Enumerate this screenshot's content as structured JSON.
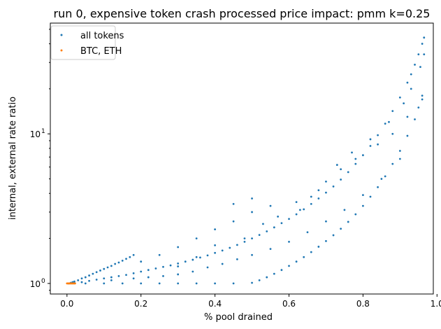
{
  "chart_data": {
    "type": "scatter",
    "title": "run 0, expensive token crash processed price impact: pmm k=0.25",
    "xlabel": "% pool drained",
    "ylabel": "internal, external rate ratio",
    "xlim": [
      -0.045,
      0.99
    ],
    "ylim": [
      0.85,
      55
    ],
    "yscale": "log",
    "grid": false,
    "legend_position": "top-left",
    "x_ticks": [
      0.0,
      0.2,
      0.4,
      0.6,
      0.8,
      1.0
    ],
    "x_tick_labels": [
      "0.0",
      "0.2",
      "0.4",
      "0.6",
      "0.8",
      "1.0"
    ],
    "y_major_ticks": [
      1,
      10
    ],
    "y_major_tick_labels": [
      "10",
      "10"
    ],
    "y_major_tick_exponents": [
      "0",
      "1"
    ],
    "series": [
      {
        "name": "all tokens",
        "color": "#1f77b4",
        "points": [
          [
            0.005,
            1.0
          ],
          [
            0.01,
            1.01
          ],
          [
            0.015,
            1.02
          ],
          [
            0.02,
            1.03
          ],
          [
            0.03,
            1.05
          ],
          [
            0.04,
            1.08
          ],
          [
            0.05,
            1.1
          ],
          [
            0.06,
            1.13
          ],
          [
            0.07,
            1.16
          ],
          [
            0.08,
            1.19
          ],
          [
            0.09,
            1.22
          ],
          [
            0.1,
            1.25
          ],
          [
            0.11,
            1.28
          ],
          [
            0.12,
            1.31
          ],
          [
            0.13,
            1.35
          ],
          [
            0.14,
            1.38
          ],
          [
            0.15,
            1.42
          ],
          [
            0.16,
            1.46
          ],
          [
            0.17,
            1.5
          ],
          [
            0.18,
            1.55
          ],
          [
            0.02,
            1.01
          ],
          [
            0.04,
            1.02
          ],
          [
            0.06,
            1.04
          ],
          [
            0.08,
            1.06
          ],
          [
            0.1,
            1.08
          ],
          [
            0.12,
            1.1
          ],
          [
            0.14,
            1.12
          ],
          [
            0.16,
            1.14
          ],
          [
            0.18,
            1.17
          ],
          [
            0.2,
            1.2
          ],
          [
            0.22,
            1.23
          ],
          [
            0.24,
            1.26
          ],
          [
            0.26,
            1.29
          ],
          [
            0.28,
            1.32
          ],
          [
            0.3,
            1.36
          ],
          [
            0.32,
            1.4
          ],
          [
            0.34,
            1.44
          ],
          [
            0.36,
            1.49
          ],
          [
            0.38,
            1.54
          ],
          [
            0.4,
            1.6
          ],
          [
            0.42,
            1.66
          ],
          [
            0.44,
            1.73
          ],
          [
            0.46,
            1.81
          ],
          [
            0.48,
            1.9
          ],
          [
            0.5,
            2.0
          ],
          [
            0.52,
            2.11
          ],
          [
            0.54,
            2.23
          ],
          [
            0.56,
            2.37
          ],
          [
            0.58,
            2.53
          ],
          [
            0.6,
            2.7
          ],
          [
            0.62,
            2.9
          ],
          [
            0.64,
            3.13
          ],
          [
            0.66,
            3.4
          ],
          [
            0.68,
            3.7
          ],
          [
            0.7,
            4.05
          ],
          [
            0.72,
            4.45
          ],
          [
            0.74,
            4.95
          ],
          [
            0.76,
            5.55
          ],
          [
            0.78,
            6.3
          ],
          [
            0.8,
            7.2
          ],
          [
            0.82,
            8.3
          ],
          [
            0.84,
            9.8
          ],
          [
            0.86,
            11.7
          ],
          [
            0.88,
            14.2
          ],
          [
            0.9,
            17.5
          ],
          [
            0.92,
            22
          ],
          [
            0.93,
            25
          ],
          [
            0.94,
            29
          ],
          [
            0.95,
            34
          ],
          [
            0.96,
            40
          ],
          [
            0.965,
            44
          ],
          [
            0.05,
            1.0
          ],
          [
            0.1,
            1.0
          ],
          [
            0.15,
            1.0
          ],
          [
            0.2,
            1.0
          ],
          [
            0.25,
            1.0
          ],
          [
            0.3,
            1.0
          ],
          [
            0.35,
            1.0
          ],
          [
            0.4,
            1.0
          ],
          [
            0.45,
            1.0
          ],
          [
            0.5,
            1.01
          ],
          [
            0.52,
            1.05
          ],
          [
            0.54,
            1.1
          ],
          [
            0.56,
            1.16
          ],
          [
            0.58,
            1.23
          ],
          [
            0.6,
            1.31
          ],
          [
            0.62,
            1.4
          ],
          [
            0.64,
            1.5
          ],
          [
            0.66,
            1.62
          ],
          [
            0.68,
            1.76
          ],
          [
            0.7,
            1.92
          ],
          [
            0.72,
            2.1
          ],
          [
            0.74,
            2.32
          ],
          [
            0.76,
            2.58
          ],
          [
            0.78,
            2.9
          ],
          [
            0.8,
            3.3
          ],
          [
            0.82,
            3.8
          ],
          [
            0.84,
            4.4
          ],
          [
            0.86,
            5.2
          ],
          [
            0.88,
            6.3
          ],
          [
            0.9,
            7.7
          ],
          [
            0.92,
            9.7
          ],
          [
            0.94,
            12.5
          ],
          [
            0.96,
            17
          ],
          [
            0.12,
            1.05
          ],
          [
            0.18,
            1.08
          ],
          [
            0.22,
            1.1
          ],
          [
            0.26,
            1.12
          ],
          [
            0.3,
            1.15
          ],
          [
            0.34,
            1.2
          ],
          [
            0.38,
            1.28
          ],
          [
            0.42,
            1.35
          ],
          [
            0.46,
            1.45
          ],
          [
            0.5,
            1.55
          ],
          [
            0.55,
            1.7
          ],
          [
            0.6,
            1.9
          ],
          [
            0.65,
            2.2
          ],
          [
            0.7,
            2.6
          ],
          [
            0.75,
            3.1
          ],
          [
            0.8,
            3.9
          ],
          [
            0.85,
            5.0
          ],
          [
            0.9,
            6.8
          ],
          [
            0.2,
            1.4
          ],
          [
            0.25,
            1.55
          ],
          [
            0.3,
            1.75
          ],
          [
            0.35,
            2.0
          ],
          [
            0.4,
            2.3
          ],
          [
            0.45,
            2.6
          ],
          [
            0.5,
            3.0
          ],
          [
            0.55,
            3.3
          ],
          [
            0.45,
            3.4
          ],
          [
            0.5,
            3.7
          ],
          [
            0.62,
            3.5
          ],
          [
            0.68,
            4.2
          ],
          [
            0.74,
            5.8
          ],
          [
            0.78,
            6.8
          ],
          [
            0.84,
            8.5
          ],
          [
            0.88,
            10
          ],
          [
            0.92,
            13
          ],
          [
            0.95,
            15
          ],
          [
            0.96,
            18
          ],
          [
            0.3,
            1.3
          ],
          [
            0.35,
            1.5
          ],
          [
            0.4,
            1.8
          ],
          [
            0.48,
            2.0
          ],
          [
            0.53,
            2.5
          ],
          [
            0.57,
            2.8
          ],
          [
            0.63,
            3.1
          ],
          [
            0.66,
            3.8
          ],
          [
            0.7,
            4.8
          ],
          [
            0.73,
            6.2
          ],
          [
            0.77,
            7.5
          ],
          [
            0.82,
            9.2
          ],
          [
            0.87,
            12
          ],
          [
            0.91,
            16
          ],
          [
            0.93,
            20
          ],
          [
            0.955,
            28
          ],
          [
            0.965,
            34
          ]
        ]
      },
      {
        "name": "BTC, ETH",
        "color": "#ff7f0e",
        "points": [
          [
            0.0,
            1.0
          ],
          [
            0.002,
            1.0
          ],
          [
            0.004,
            1.0
          ],
          [
            0.006,
            1.0
          ],
          [
            0.008,
            1.0
          ],
          [
            0.01,
            1.0
          ],
          [
            0.012,
            1.0
          ],
          [
            0.014,
            1.0
          ],
          [
            0.016,
            1.0
          ],
          [
            0.018,
            1.0
          ],
          [
            0.02,
            1.0
          ],
          [
            0.022,
            1.0
          ]
        ]
      }
    ]
  }
}
